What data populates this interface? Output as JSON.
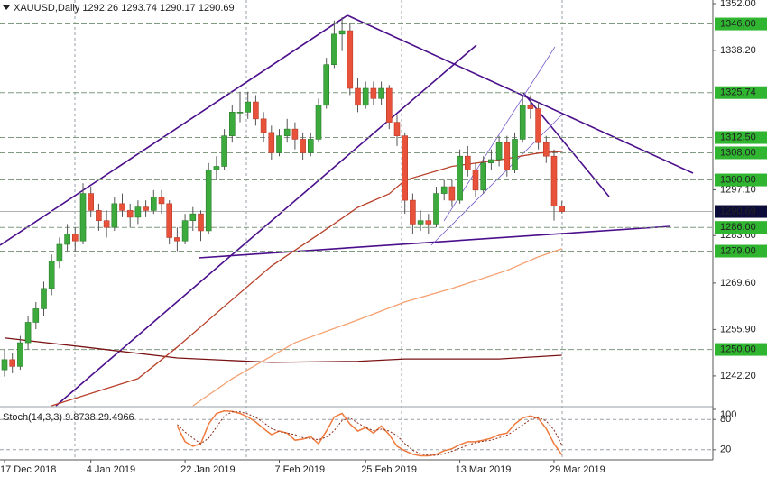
{
  "chart_data": [
    {
      "type": "candlestick",
      "title": "XAUUSD,Daily 1292.26 1293.74 1290.17 1290.69",
      "ylim": [
        1233.4,
        1353.06
      ],
      "yticks": [
        {
          "value": 1352,
          "label": "1352.00"
        },
        {
          "value": 1338.2,
          "label": "1338.20"
        },
        {
          "value": 1297.1,
          "label": "1297.10"
        },
        {
          "value": 1283.6,
          "label": "1283.60"
        },
        {
          "value": 1269.6,
          "label": "1269.60"
        },
        {
          "value": 1255.9,
          "label": "1255.90"
        },
        {
          "value": 1242.2,
          "label": "1242.20"
        }
      ],
      "xticks": [
        {
          "value": 0,
          "label": "17 Dec 2018"
        },
        {
          "value": 11,
          "label": "4 Jan 2019"
        },
        {
          "value": 23,
          "label": "22 Jan 2019"
        },
        {
          "value": 35,
          "label": "7 Feb 2019"
        },
        {
          "value": 46,
          "label": "25 Feb 2019"
        },
        {
          "value": 58,
          "label": "13 Mar 2019"
        },
        {
          "value": 70,
          "label": "29 Mar 2019"
        }
      ],
      "levels": [
        {
          "value": 1346,
          "label": "1346.00"
        },
        {
          "value": 1325.74,
          "label": "1325.74"
        },
        {
          "value": 1312.5,
          "label": "1312.50"
        },
        {
          "value": 1308,
          "label": "1308.00"
        },
        {
          "value": 1300,
          "label": "1300.00"
        },
        {
          "value": 1286,
          "label": "1286.00"
        },
        {
          "value": 1279,
          "label": "1279.00"
        },
        {
          "value": 1250,
          "label": "1250.00"
        }
      ],
      "last_price": 1290.69,
      "up_color": "#3daa3d",
      "down_color": "#e8523a",
      "ohlc": [
        [
          1244,
          1250,
          1242,
          1247
        ],
        [
          1247,
          1249,
          1243,
          1245
        ],
        [
          1245,
          1254,
          1244,
          1252
        ],
        [
          1252,
          1260,
          1250,
          1258
        ],
        [
          1258,
          1264,
          1256,
          1262
        ],
        [
          1262,
          1270,
          1260,
          1268
        ],
        [
          1268,
          1278,
          1266,
          1276
        ],
        [
          1276,
          1283,
          1274,
          1281
        ],
        [
          1281,
          1287,
          1279,
          1284
        ],
        [
          1284,
          1286,
          1279,
          1282
        ],
        [
          1282,
          1299,
          1281,
          1296
        ],
        [
          1296,
          1298,
          1289,
          1291
        ],
        [
          1291,
          1293,
          1285,
          1288
        ],
        [
          1288,
          1291,
          1283,
          1286
        ],
        [
          1286,
          1295,
          1285,
          1293
        ],
        [
          1293,
          1296,
          1289,
          1291
        ],
        [
          1291,
          1293,
          1286,
          1289
        ],
        [
          1289,
          1294,
          1287,
          1292
        ],
        [
          1292,
          1294,
          1289,
          1291
        ],
        [
          1291,
          1297,
          1290,
          1295
        ],
        [
          1295,
          1297,
          1290,
          1293
        ],
        [
          1293,
          1294,
          1281,
          1283
        ],
        [
          1283,
          1286,
          1279,
          1282
        ],
        [
          1282,
          1290,
          1281,
          1288
        ],
        [
          1288,
          1292,
          1285,
          1290
        ],
        [
          1290,
          1291,
          1282,
          1285
        ],
        [
          1285,
          1305,
          1284,
          1303
        ],
        [
          1303,
          1307,
          1300,
          1304
        ],
        [
          1304,
          1315,
          1303,
          1313
        ],
        [
          1313,
          1322,
          1311,
          1320
        ],
        [
          1320,
          1326,
          1317,
          1320
        ],
        [
          1320,
          1326,
          1318,
          1323
        ],
        [
          1323,
          1325,
          1316,
          1318
        ],
        [
          1318,
          1320,
          1311,
          1314
        ],
        [
          1314,
          1316,
          1306,
          1308
        ],
        [
          1308,
          1315,
          1307,
          1313
        ],
        [
          1313,
          1318,
          1311,
          1315
        ],
        [
          1315,
          1317,
          1309,
          1312
        ],
        [
          1312,
          1314,
          1306,
          1308
        ],
        [
          1308,
          1314,
          1307,
          1312
        ],
        [
          1312,
          1324,
          1311,
          1322
        ],
        [
          1322,
          1336,
          1321,
          1334
        ],
        [
          1334,
          1347,
          1333,
          1343
        ],
        [
          1343,
          1348,
          1338,
          1344
        ],
        [
          1344,
          1346,
          1325,
          1327
        ],
        [
          1327,
          1330,
          1320,
          1322
        ],
        [
          1322,
          1329,
          1321,
          1327
        ],
        [
          1327,
          1329,
          1322,
          1324
        ],
        [
          1324,
          1329,
          1322,
          1327
        ],
        [
          1327,
          1328,
          1315,
          1317
        ],
        [
          1317,
          1319,
          1310,
          1313
        ],
        [
          1313,
          1314,
          1290,
          1294
        ],
        [
          1294,
          1296,
          1284,
          1287
        ],
        [
          1287,
          1291,
          1285,
          1288
        ],
        [
          1288,
          1290,
          1284,
          1287
        ],
        [
          1287,
          1298,
          1286,
          1296
        ],
        [
          1296,
          1300,
          1294,
          1298
        ],
        [
          1298,
          1300,
          1292,
          1294
        ],
        [
          1294,
          1309,
          1293,
          1307
        ],
        [
          1307,
          1310,
          1301,
          1303
        ],
        [
          1303,
          1305,
          1295,
          1297
        ],
        [
          1297,
          1307,
          1296,
          1305
        ],
        [
          1305,
          1309,
          1303,
          1306
        ],
        [
          1306,
          1313,
          1304,
          1311
        ],
        [
          1311,
          1313,
          1301,
          1303
        ],
        [
          1303,
          1314,
          1302,
          1312
        ],
        [
          1312,
          1325,
          1311,
          1322
        ],
        [
          1322,
          1325,
          1318,
          1321
        ],
        [
          1321,
          1323,
          1309,
          1311
        ],
        [
          1311,
          1313,
          1305,
          1307
        ],
        [
          1307,
          1309,
          1288,
          1292.26
        ],
        [
          1292.26,
          1293.74,
          1290.17,
          1290.69
        ]
      ],
      "moving_averages": [
        {
          "color": "#7a1414",
          "x": [
            0,
            11,
            22,
            34,
            45,
            51,
            63,
            71
          ],
          "values": [
            1253.4,
            1250.5,
            1247.5,
            1246.2,
            1246.5,
            1247.2,
            1247.2,
            1248.3
          ]
        },
        {
          "color": "#b8402a",
          "x": [
            6,
            17,
            22,
            28,
            34,
            40,
            45,
            49,
            51,
            57,
            63,
            68,
            71
          ],
          "values": [
            1233.4,
            1241.4,
            1250.7,
            1262.7,
            1274.6,
            1283.9,
            1291.9,
            1295.9,
            1299.9,
            1304,
            1305.9,
            1307.9,
            1308.4
          ]
        },
        {
          "color": "#f5a070",
          "x": [
            24,
            29,
            37,
            45,
            51,
            57,
            64,
            68,
            71
          ],
          "values": [
            1233.4,
            1241.4,
            1252,
            1258.7,
            1264,
            1268,
            1273.3,
            1277.3,
            1279.7
          ]
        }
      ]
    },
    {
      "type": "line",
      "title": "Stoch(14,3,3) 9.8738 29.4966",
      "ylim": [
        0,
        100
      ],
      "yticks": [
        100,
        80,
        20
      ],
      "levels": [
        80,
        20
      ],
      "series": [
        {
          "color": "#f07a3c",
          "values": [
            null,
            null,
            null,
            null,
            null,
            null,
            null,
            null,
            null,
            null,
            null,
            null,
            null,
            null,
            null,
            null,
            null,
            null,
            null,
            null,
            null,
            null,
            67,
            36,
            27,
            32,
            71,
            92,
            97,
            96,
            92,
            85,
            75,
            62,
            50,
            57,
            53,
            39,
            41,
            46,
            32,
            57,
            85,
            92,
            71,
            57,
            64,
            53,
            67,
            50,
            27,
            18,
            11,
            8,
            8,
            11,
            18,
            22,
            30,
            36,
            36,
            39,
            43,
            50,
            53,
            71,
            83,
            87,
            82,
            62,
            32,
            9.8738
          ]
        },
        {
          "color": "#8b2a1a",
          "values": [
            null,
            null,
            null,
            null,
            null,
            null,
            null,
            null,
            null,
            null,
            null,
            null,
            null,
            null,
            null,
            null,
            null,
            null,
            null,
            null,
            null,
            null,
            70,
            55,
            43,
            32,
            43,
            65,
            87,
            95,
            95,
            91,
            84,
            74,
            62,
            56,
            53,
            50,
            44,
            42,
            40,
            45,
            58,
            78,
            83,
            73,
            64,
            58,
            61,
            57,
            48,
            32,
            19,
            12,
            9,
            9,
            12,
            17,
            23,
            29,
            34,
            37,
            39,
            44,
            49,
            58,
            69,
            80,
            84,
            77,
            59,
            29.4966
          ]
        }
      ]
    }
  ]
}
